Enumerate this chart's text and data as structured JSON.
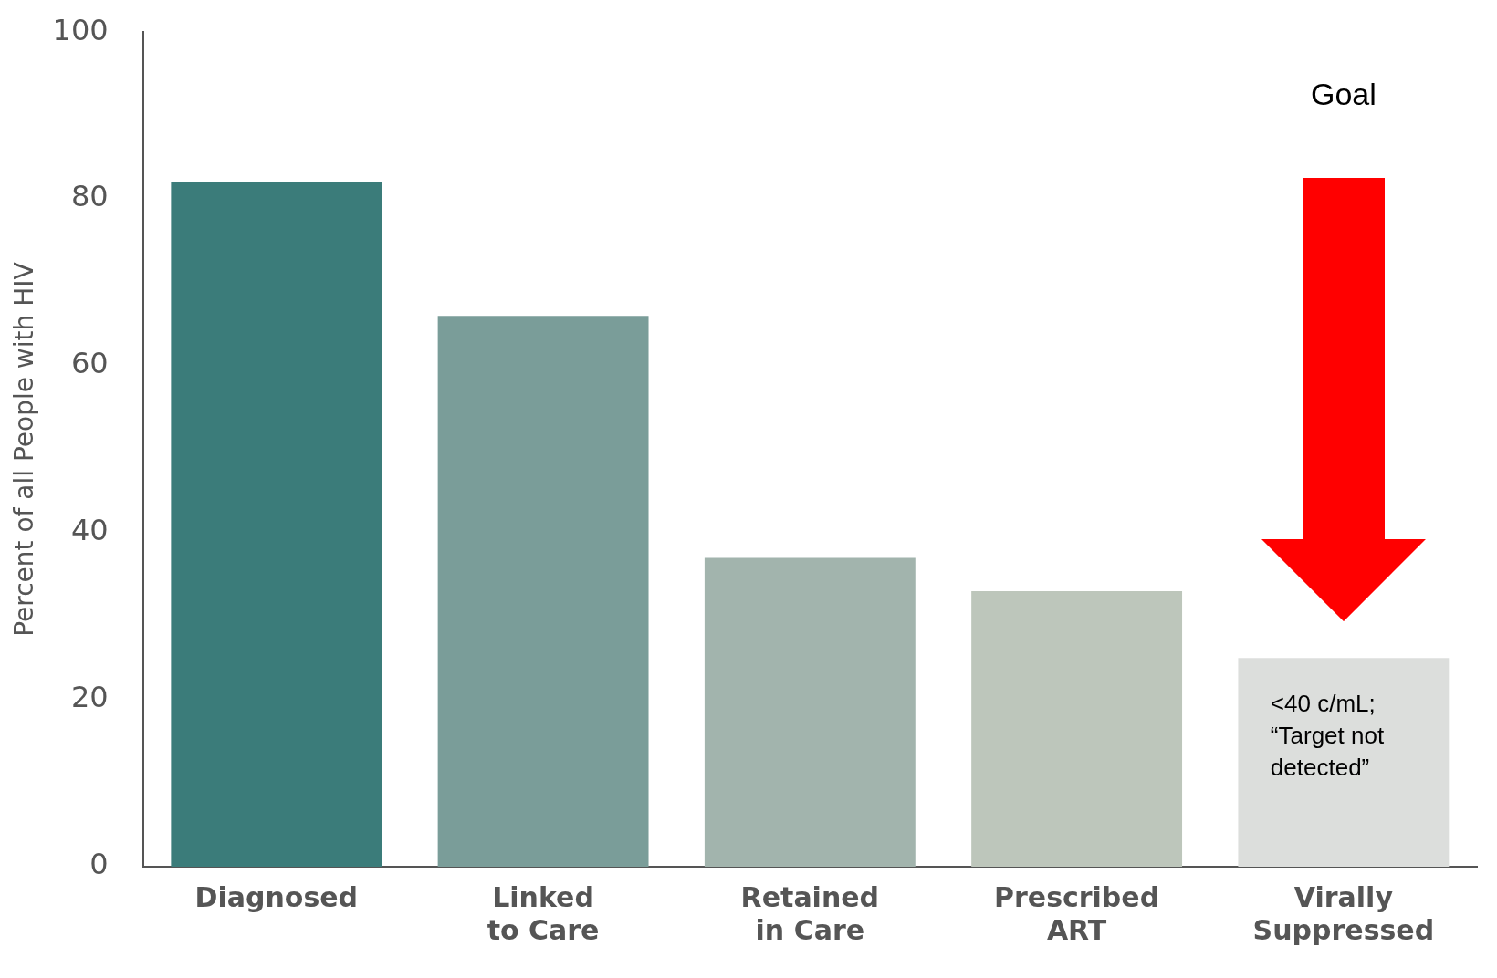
{
  "chart_data": {
    "type": "bar",
    "ylabel": "Percent of all People with HIV",
    "categories": [
      "Diagnosed",
      "Linked to Care",
      "Retained in Care",
      "Prescribed ART",
      "Virally Suppressed"
    ],
    "values": [
      82,
      66,
      37,
      33,
      25
    ],
    "colors": [
      "#3b7c7a",
      "#7a9d99",
      "#a2b4ad",
      "#bdc6bb",
      "#dcdedc"
    ],
    "ylim": [
      0,
      100
    ],
    "yticks": [
      0,
      20,
      40,
      60,
      80,
      100
    ],
    "grid": false,
    "legend": false,
    "annotations": [
      "Goal",
      "<40 c/mL; “Target not detected”"
    ]
  }
}
